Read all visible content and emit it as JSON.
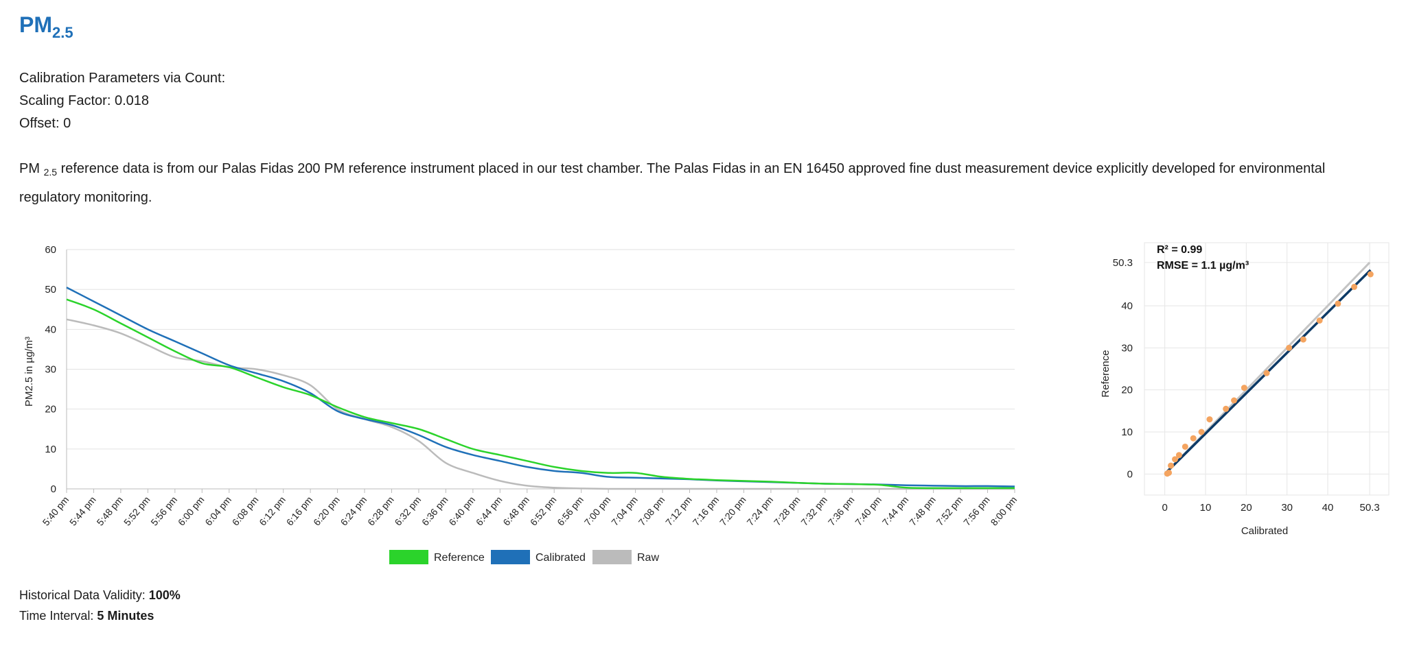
{
  "header": {
    "title_main": "PM",
    "title_sub": "2.5"
  },
  "params": {
    "heading": "Calibration Parameters via Count:",
    "scaling_factor": "Scaling Factor: 0.018",
    "offset": "Offset: 0"
  },
  "description": {
    "pm_main": "PM",
    "pm_sub": "2.5",
    "text": " reference data is from our Palas Fidas 200 PM reference instrument placed in our test chamber. The Palas Fidas in an EN 16450 approved fine dust measurement device explicitly developed for environmental regulatory monitoring."
  },
  "footer": {
    "validity_label": "Historical Data Validity:",
    "validity_value": "100%",
    "interval_label": "Time Interval:",
    "interval_value": "5 Minutes"
  },
  "colors": {
    "reference": "#2bd32b",
    "calibrated": "#1f70b8",
    "raw": "#bbbbbb",
    "scatter_point": "#f4a460",
    "fit_line": "#0d3a66",
    "identity_line": "#c4c4c4"
  },
  "chart_data": [
    {
      "type": "line",
      "title": "",
      "xlabel": "",
      "ylabel": "PM2.5 in µg/m³",
      "ylim": [
        0,
        60
      ],
      "yticks": [
        0,
        10,
        20,
        30,
        40,
        50,
        60
      ],
      "grid": true,
      "legend_position": "bottom-center",
      "categories": [
        "5:40 pm",
        "5:44 pm",
        "5:48 pm",
        "5:52 pm",
        "5:56 pm",
        "6:00 pm",
        "6:04 pm",
        "6:08 pm",
        "6:12 pm",
        "6:16 pm",
        "6:20 pm",
        "6:24 pm",
        "6:28 pm",
        "6:32 pm",
        "6:36 pm",
        "6:40 pm",
        "6:44 pm",
        "6:48 pm",
        "6:52 pm",
        "6:56 pm",
        "7:00 pm",
        "7:04 pm",
        "7:08 pm",
        "7:12 pm",
        "7:16 pm",
        "7:20 pm",
        "7:24 pm",
        "7:28 pm",
        "7:32 pm",
        "7:36 pm",
        "7:40 pm",
        "7:44 pm",
        "7:48 pm",
        "7:52 pm",
        "7:56 pm",
        "8:00 pm"
      ],
      "series": [
        {
          "name": "Reference",
          "color": "#2bd32b",
          "values": [
            47.5,
            45,
            41.5,
            38,
            34.5,
            31.5,
            30.5,
            28,
            25.5,
            23.5,
            20.5,
            18,
            16.5,
            15,
            12.5,
            10,
            8.5,
            7,
            5.5,
            4.5,
            4,
            4,
            3,
            2.5,
            2.2,
            2,
            1.8,
            1.5,
            1.3,
            1.2,
            1,
            0.3,
            0.2,
            0.2,
            0.2,
            0.2
          ]
        },
        {
          "name": "Calibrated",
          "color": "#1f70b8",
          "values": [
            50.5,
            47,
            43.5,
            40,
            37,
            34,
            31,
            29,
            27,
            24,
            19.5,
            17.5,
            16,
            13.5,
            10.5,
            8.5,
            7,
            5.5,
            4.5,
            4,
            3,
            2.8,
            2.6,
            2.4,
            2.1,
            1.9,
            1.7,
            1.5,
            1.3,
            1.2,
            1.1,
            0.9,
            0.8,
            0.7,
            0.7,
            0.6
          ]
        },
        {
          "name": "Raw",
          "color": "#bbbbbb",
          "values": [
            42.5,
            41,
            39,
            36,
            33,
            32,
            30.5,
            30,
            28.5,
            26,
            20,
            17.5,
            15.5,
            12,
            6.5,
            4,
            2,
            0.8,
            0.3,
            0.1,
            0,
            0,
            0,
            0,
            0,
            0,
            0,
            0,
            0,
            0,
            0,
            0,
            0,
            0,
            0,
            0
          ]
        }
      ]
    },
    {
      "type": "scatter",
      "title": "",
      "xlabel": "Calibrated",
      "ylabel": "Reference",
      "xlim": [
        -5,
        55
      ],
      "ylim": [
        -5,
        55
      ],
      "xticks": [
        "0",
        "10",
        "20",
        "30",
        "40",
        "50.3"
      ],
      "xtick_values": [
        0,
        10,
        20,
        30,
        40,
        50.3
      ],
      "yticks": [
        "0",
        "10",
        "20",
        "30",
        "40",
        "50.3"
      ],
      "ytick_values": [
        0,
        10,
        20,
        30,
        40,
        50.3
      ],
      "grid": true,
      "annotation_r2": "R² = 0.99",
      "annotation_rmse": "RMSE = 1.1  µg/m³",
      "points": [
        [
          0.6,
          0.1
        ],
        [
          1,
          0.3
        ],
        [
          1.5,
          2
        ],
        [
          2.5,
          3.5
        ],
        [
          3.5,
          4.5
        ],
        [
          5,
          6.5
        ],
        [
          7,
          8.5
        ],
        [
          9,
          10
        ],
        [
          11,
          13
        ],
        [
          15,
          15.5
        ],
        [
          17,
          17.5
        ],
        [
          19.5,
          20.5
        ],
        [
          25,
          24
        ],
        [
          30.5,
          30
        ],
        [
          34,
          32
        ],
        [
          38,
          36.5
        ],
        [
          42.5,
          40.5
        ],
        [
          46.5,
          44.5
        ],
        [
          50.5,
          47.5
        ]
      ],
      "fit_line": [
        [
          0.5,
          0.5
        ],
        [
          50.5,
          48.5
        ]
      ],
      "identity_line": [
        [
          0,
          0
        ],
        [
          50.3,
          50.3
        ]
      ]
    }
  ]
}
